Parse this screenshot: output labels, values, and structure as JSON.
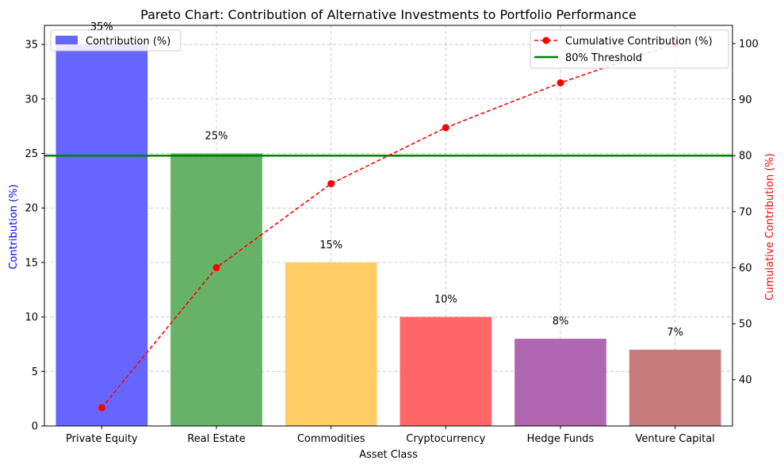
{
  "chart_data": {
    "type": "bar",
    "title": "Pareto Chart: Contribution of Alternative Investments to Portfolio Performance",
    "xlabel": "Asset Class",
    "ylabel": "Contribution (%)",
    "y2label": "Cumulative Contribution (%)",
    "categories": [
      "Private Equity",
      "Real Estate",
      "Commodities",
      "Cryptocurrency",
      "Hedge Funds",
      "Venture Capital"
    ],
    "values": [
      35,
      25,
      15,
      10,
      8,
      7
    ],
    "data_labels": [
      "35%",
      "25%",
      "15%",
      "10%",
      "8%",
      "7%"
    ],
    "bar_colors": [
      "#6666ff",
      "#66b266",
      "#ffcc66",
      "#ff6666",
      "#b066b0",
      "#c77b7b"
    ],
    "cumulative": [
      35,
      60,
      75,
      85,
      93,
      100
    ],
    "threshold": 80,
    "ylim": [
      0,
      36.75
    ],
    "y_ticks": [
      0,
      5,
      10,
      15,
      20,
      25,
      30,
      35
    ],
    "y2lim": [
      31.75,
      103.25
    ],
    "y2_ticks": [
      40,
      50,
      60,
      70,
      80,
      90,
      100
    ],
    "grid": true,
    "colors": {
      "line": "#ff0000",
      "threshold": "#008000",
      "ylabel": "#0000ff",
      "y2label": "#ff0000"
    },
    "legend_left": {
      "placement": "top-left",
      "entries": [
        "Contribution (%)"
      ]
    },
    "legend_right": {
      "placement": "top-right",
      "entries": [
        "Cumulative Contribution (%)",
        "80% Threshold"
      ]
    }
  }
}
